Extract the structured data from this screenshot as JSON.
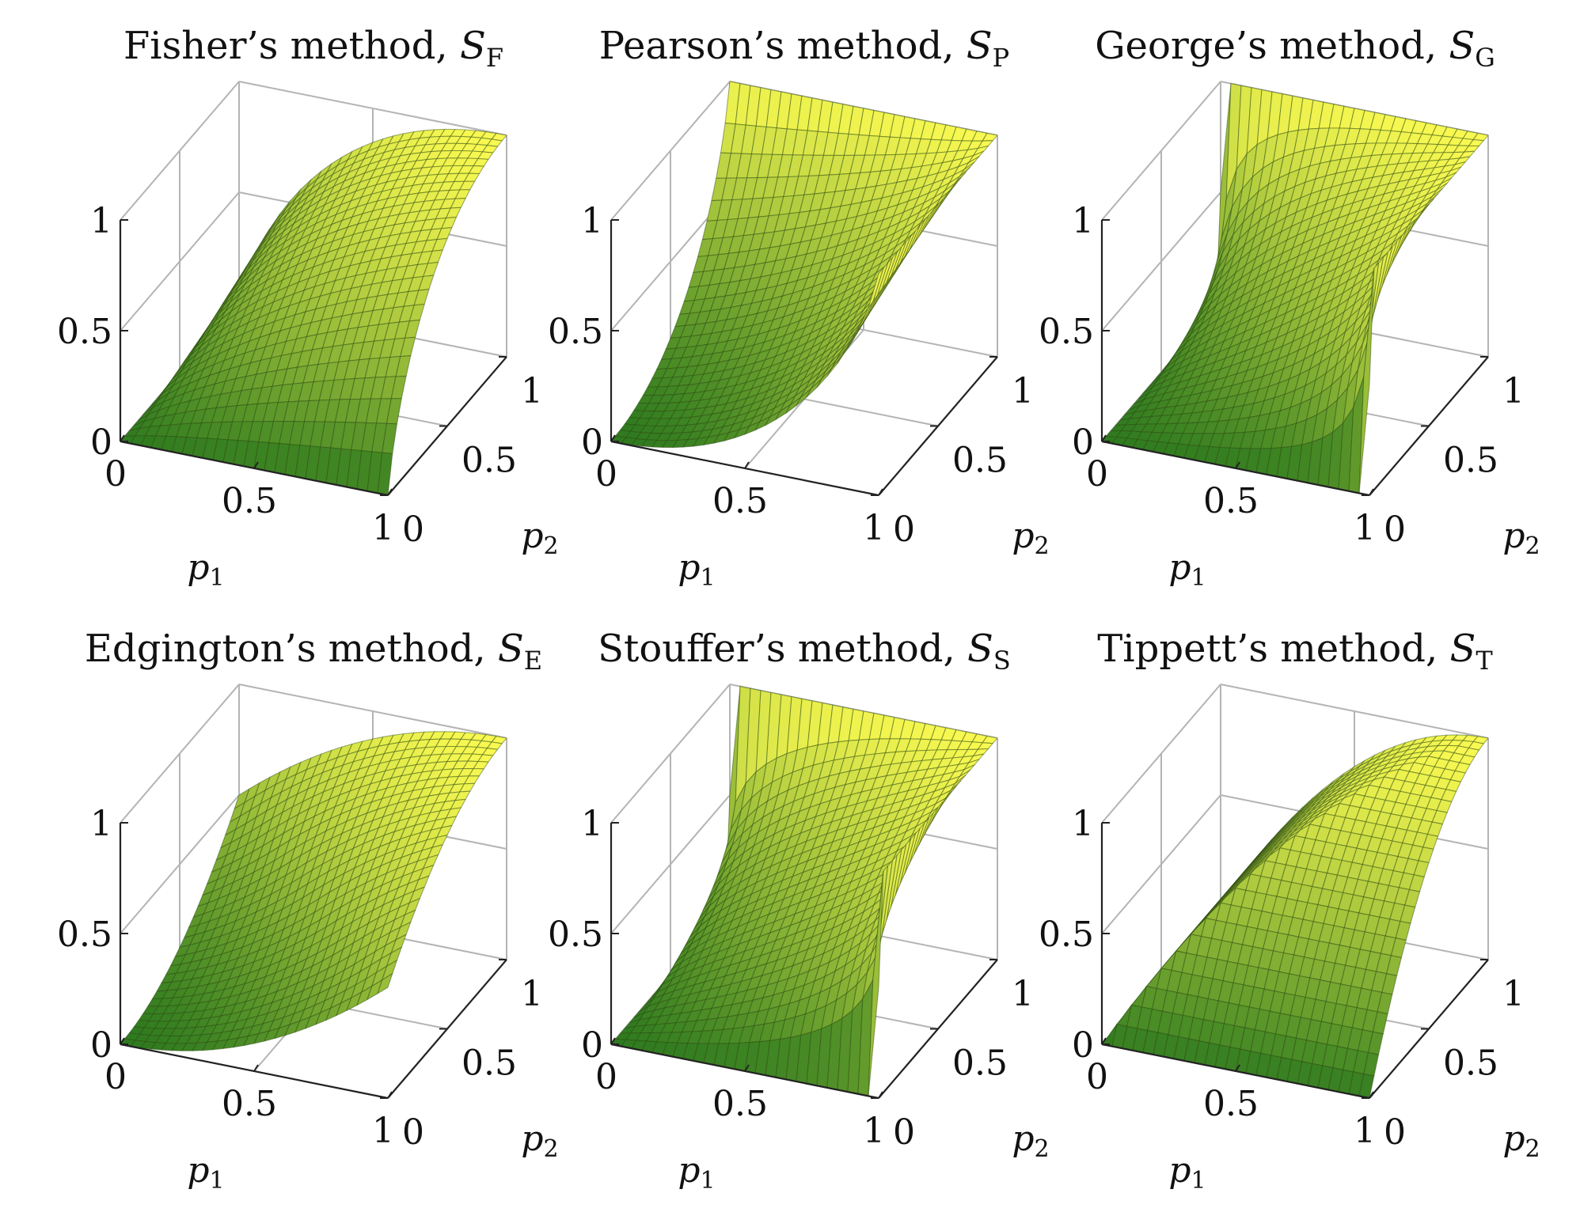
{
  "chart_data": [
    {
      "type": "surface",
      "method": "fisher",
      "title": "Fisher’s method, ",
      "title_symbol": "S",
      "title_sub": "F",
      "xlabel": "p",
      "xlabel_sub": "1",
      "ylabel": "p",
      "ylabel_sub": "2",
      "x_ticks": [
        "0",
        "0.5",
        "1"
      ],
      "y_ticks": [
        "0",
        "0.5",
        "1"
      ],
      "z_ticks": [
        "0",
        "0.5",
        "1"
      ],
      "xlim": [
        0,
        1
      ],
      "ylim": [
        0,
        1
      ],
      "zlim": [
        0,
        1
      ],
      "colormap": [
        "#2e7a1f",
        "#f9f951"
      ]
    },
    {
      "type": "surface",
      "method": "pearson",
      "title": "Pearson’s method, ",
      "title_symbol": "S",
      "title_sub": "P",
      "xlabel": "p",
      "xlabel_sub": "1",
      "ylabel": "p",
      "ylabel_sub": "2",
      "x_ticks": [
        "0",
        "0.5",
        "1"
      ],
      "y_ticks": [
        "0",
        "0.5",
        "1"
      ],
      "z_ticks": [
        "0",
        "0.5",
        "1"
      ],
      "xlim": [
        0,
        1
      ],
      "ylim": [
        0,
        1
      ],
      "zlim": [
        0,
        1
      ],
      "colormap": [
        "#2e7a1f",
        "#f9f951"
      ]
    },
    {
      "type": "surface",
      "method": "george",
      "title": "George’s method, ",
      "title_symbol": "S",
      "title_sub": "G",
      "xlabel": "p",
      "xlabel_sub": "1",
      "ylabel": "p",
      "ylabel_sub": "2",
      "x_ticks": [
        "0",
        "0.5",
        "1"
      ],
      "y_ticks": [
        "0",
        "0.5",
        "1"
      ],
      "z_ticks": [
        "0",
        "0.5",
        "1"
      ],
      "xlim": [
        0,
        1
      ],
      "ylim": [
        0,
        1
      ],
      "zlim": [
        0,
        1
      ],
      "colormap": [
        "#2e7a1f",
        "#f9f951"
      ]
    },
    {
      "type": "surface",
      "method": "edgington",
      "title": "Edgington’s method, ",
      "title_symbol": "S",
      "title_sub": "E",
      "xlabel": "p",
      "xlabel_sub": "1",
      "ylabel": "p",
      "ylabel_sub": "2",
      "x_ticks": [
        "0",
        "0.5",
        "1"
      ],
      "y_ticks": [
        "0",
        "0.5",
        "1"
      ],
      "z_ticks": [
        "0",
        "0.5",
        "1"
      ],
      "xlim": [
        0,
        1
      ],
      "ylim": [
        0,
        1
      ],
      "zlim": [
        0,
        1
      ],
      "colormap": [
        "#2e7a1f",
        "#f9f951"
      ]
    },
    {
      "type": "surface",
      "method": "stouffer",
      "title": "Stouffer’s method, ",
      "title_symbol": "S",
      "title_sub": "S",
      "xlabel": "p",
      "xlabel_sub": "1",
      "ylabel": "p",
      "ylabel_sub": "2",
      "x_ticks": [
        "0",
        "0.5",
        "1"
      ],
      "y_ticks": [
        "0",
        "0.5",
        "1"
      ],
      "z_ticks": [
        "0",
        "0.5",
        "1"
      ],
      "xlim": [
        0,
        1
      ],
      "ylim": [
        0,
        1
      ],
      "zlim": [
        0,
        1
      ],
      "colormap": [
        "#2e7a1f",
        "#f9f951"
      ]
    },
    {
      "type": "surface",
      "method": "tippett",
      "title": "Tippett’s method, ",
      "title_symbol": "S",
      "title_sub": "T",
      "xlabel": "p",
      "xlabel_sub": "1",
      "ylabel": "p",
      "ylabel_sub": "2",
      "x_ticks": [
        "0",
        "0.5",
        "1"
      ],
      "y_ticks": [
        "0",
        "0.5",
        "1"
      ],
      "z_ticks": [
        "0",
        "0.5",
        "1"
      ],
      "xlim": [
        0,
        1
      ],
      "ylim": [
        0,
        1
      ],
      "zlim": [
        0,
        1
      ],
      "colormap": [
        "#2e7a1f",
        "#f9f951"
      ]
    }
  ]
}
